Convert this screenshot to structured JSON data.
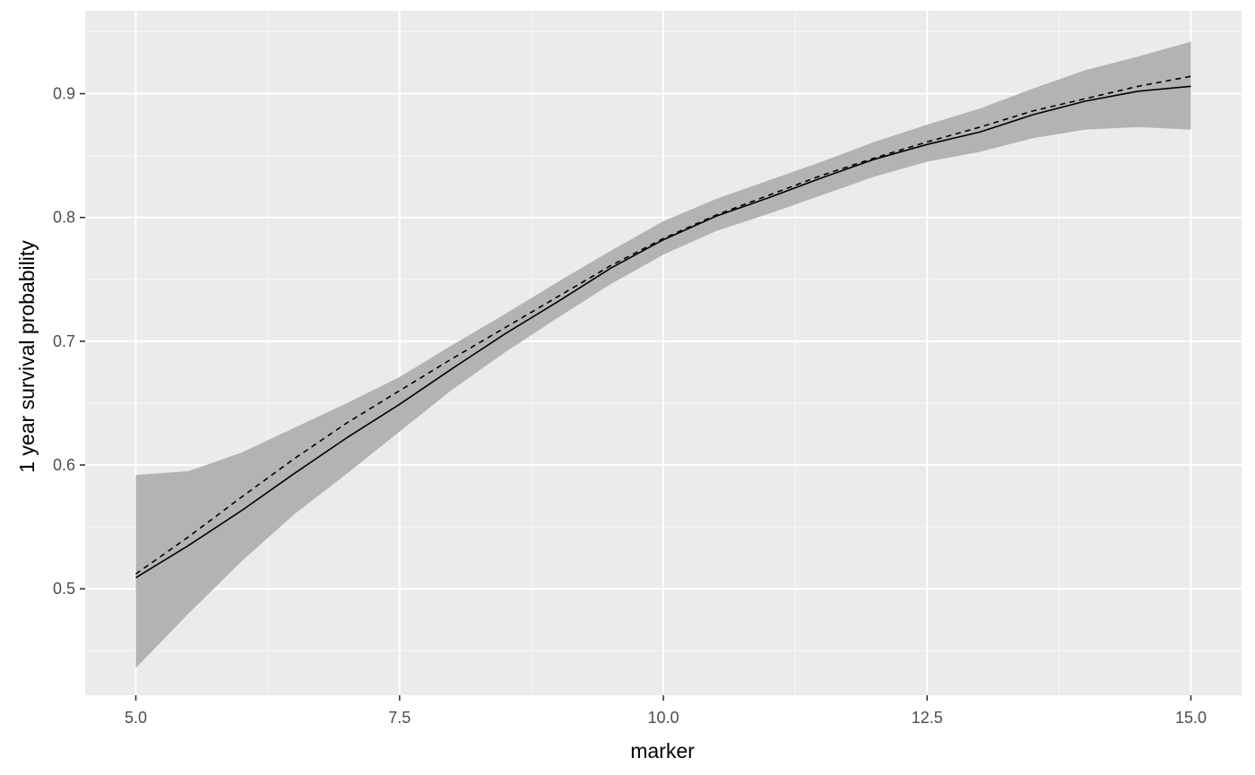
{
  "chart_data": {
    "type": "line",
    "title": "",
    "xlabel": "marker",
    "ylabel": "1 year survival probability",
    "xlim": [
      4.52,
      15.48
    ],
    "ylim": [
      0.414,
      0.967
    ],
    "x_ticks": [
      5.0,
      7.5,
      10.0,
      12.5,
      15.0
    ],
    "x_tick_labels": [
      "5.0",
      "7.5",
      "10.0",
      "12.5",
      "15.0"
    ],
    "y_ticks": [
      0.5,
      0.6,
      0.7,
      0.8,
      0.9
    ],
    "y_tick_labels": [
      "0.5",
      "0.6",
      "0.7",
      "0.8",
      "0.9"
    ],
    "grid": true,
    "legend": "none",
    "colors": {
      "panel": "#ebebeb",
      "grid_major": "#ffffff",
      "band": "#b3b3b3",
      "line": "#000000"
    },
    "x": [
      5.0,
      5.5,
      6.0,
      6.5,
      7.0,
      7.5,
      8.0,
      8.5,
      9.0,
      9.5,
      10.0,
      10.5,
      11.0,
      11.5,
      12.0,
      12.5,
      13.0,
      13.5,
      14.0,
      14.5,
      15.0
    ],
    "series": [
      {
        "style": "solid",
        "values": [
          0.509,
          0.535,
          0.563,
          0.593,
          0.622,
          0.649,
          0.678,
          0.706,
          0.732,
          0.759,
          0.782,
          0.801,
          0.816,
          0.832,
          0.847,
          0.859,
          0.869,
          0.883,
          0.894,
          0.902,
          0.906
        ]
      },
      {
        "style": "dashed",
        "values": [
          0.512,
          0.542,
          0.574,
          0.605,
          0.634,
          0.66,
          0.686,
          0.711,
          0.736,
          0.761,
          0.783,
          0.802,
          0.818,
          0.834,
          0.848,
          0.861,
          0.873,
          0.886,
          0.896,
          0.906,
          0.914
        ]
      }
    ],
    "band": {
      "lower": [
        0.436,
        0.48,
        0.522,
        0.56,
        0.593,
        0.627,
        0.661,
        0.691,
        0.719,
        0.746,
        0.77,
        0.789,
        0.803,
        0.818,
        0.833,
        0.845,
        0.853,
        0.864,
        0.871,
        0.873,
        0.871
      ],
      "upper": [
        0.592,
        0.595,
        0.61,
        0.63,
        0.65,
        0.671,
        0.697,
        0.722,
        0.748,
        0.773,
        0.797,
        0.815,
        0.83,
        0.845,
        0.861,
        0.875,
        0.888,
        0.904,
        0.919,
        0.93,
        0.942
      ]
    }
  }
}
